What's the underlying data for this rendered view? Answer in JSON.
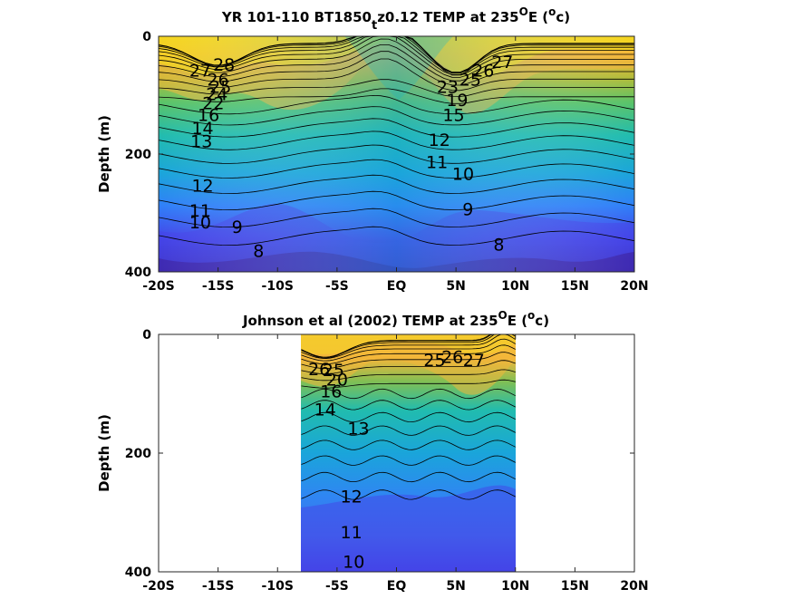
{
  "chart_data": [
    {
      "type": "contour",
      "title": "YR 101-110 BT1850",
      "title_sub": "t",
      "title_rest": "z0.12 TEMP at 235",
      "title_sup1": "O",
      "title_mid": "E (",
      "title_sup2": "o",
      "title_end": "c)",
      "ylabel": "Depth (m)",
      "xlabel": "",
      "x_ticks": [
        "-20S",
        "-15S",
        "-10S",
        "-5S",
        "EQ",
        "5N",
        "10N",
        "15N",
        "20N"
      ],
      "y_ticks": [
        "0",
        "200",
        "400"
      ],
      "xlim": [
        -20,
        20
      ],
      "ylim": [
        0,
        400
      ],
      "x_data_range": [
        -20,
        20
      ],
      "colormap": [
        "#3d26a8",
        "#4444e8",
        "#2f7ff8",
        "#1aa5da",
        "#21bcae",
        "#5ac368",
        "#b0bc3a",
        "#f3b63a",
        "#f4e016"
      ],
      "contour_labels": [
        {
          "text": "28",
          "x": -14.5,
          "y": 50
        },
        {
          "text": "27",
          "x": -16.5,
          "y": 60
        },
        {
          "text": "26",
          "x": -15,
          "y": 75
        },
        {
          "text": "25",
          "x": -14.8,
          "y": 88
        },
        {
          "text": "24",
          "x": -15.1,
          "y": 100
        },
        {
          "text": "22",
          "x": -15.4,
          "y": 115
        },
        {
          "text": "16",
          "x": -15.8,
          "y": 135
        },
        {
          "text": "14",
          "x": -16.3,
          "y": 158
        },
        {
          "text": "13",
          "x": -16.4,
          "y": 180
        },
        {
          "text": "12",
          "x": -16.3,
          "y": 255
        },
        {
          "text": "11",
          "x": -16.5,
          "y": 298
        },
        {
          "text": "10",
          "x": -16.5,
          "y": 318
        },
        {
          "text": "9",
          "x": -13.4,
          "y": 325
        },
        {
          "text": "8",
          "x": -11.6,
          "y": 366
        },
        {
          "text": "27",
          "x": 8.9,
          "y": 45
        },
        {
          "text": "26",
          "x": 7.3,
          "y": 60
        },
        {
          "text": "25",
          "x": 6.2,
          "y": 75
        },
        {
          "text": "23",
          "x": 4.3,
          "y": 88
        },
        {
          "text": "19",
          "x": 5.1,
          "y": 110
        },
        {
          "text": "15",
          "x": 4.8,
          "y": 135
        },
        {
          "text": "12",
          "x": 3.6,
          "y": 178
        },
        {
          "text": "11",
          "x": 3.4,
          "y": 215
        },
        {
          "text": "10",
          "x": 5.6,
          "y": 235
        },
        {
          "text": "9",
          "x": 6.0,
          "y": 295
        },
        {
          "text": "8",
          "x": 8.6,
          "y": 355
        }
      ]
    },
    {
      "type": "contour",
      "title": "Johnson et al (2002) TEMP at 235",
      "title_sup1": "O",
      "title_mid": "E (",
      "title_sup2": "o",
      "title_end": "c)",
      "ylabel": "Depth (m)",
      "xlabel": "",
      "x_ticks": [
        "-20S",
        "-15S",
        "-10S",
        "-5S",
        "EQ",
        "5N",
        "10N",
        "15N",
        "20N"
      ],
      "y_ticks": [
        "0",
        "200",
        "400"
      ],
      "xlim": [
        -20,
        20
      ],
      "ylim": [
        0,
        400
      ],
      "x_data_range": [
        -8,
        10
      ],
      "colormap": [
        "#3d26a8",
        "#4444e8",
        "#2f7ff8",
        "#1aa5da",
        "#21bcae",
        "#5ac368",
        "#b0bc3a",
        "#f3b63a",
        "#f4e016"
      ],
      "contour_labels": [
        {
          "text": "26",
          "x": -6.5,
          "y": 60
        },
        {
          "text": "25",
          "x": -5.3,
          "y": 62
        },
        {
          "text": "20",
          "x": -5.0,
          "y": 78
        },
        {
          "text": "16",
          "x": -5.5,
          "y": 98
        },
        {
          "text": "14",
          "x": -6.0,
          "y": 128
        },
        {
          "text": "13",
          "x": -3.2,
          "y": 160
        },
        {
          "text": "12",
          "x": -3.8,
          "y": 275
        },
        {
          "text": "11",
          "x": -3.8,
          "y": 335
        },
        {
          "text": "10",
          "x": -3.6,
          "y": 385
        },
        {
          "text": "25",
          "x": 3.2,
          "y": 45
        },
        {
          "text": "26",
          "x": 4.7,
          "y": 40
        },
        {
          "text": "27",
          "x": 6.5,
          "y": 45
        }
      ]
    }
  ]
}
